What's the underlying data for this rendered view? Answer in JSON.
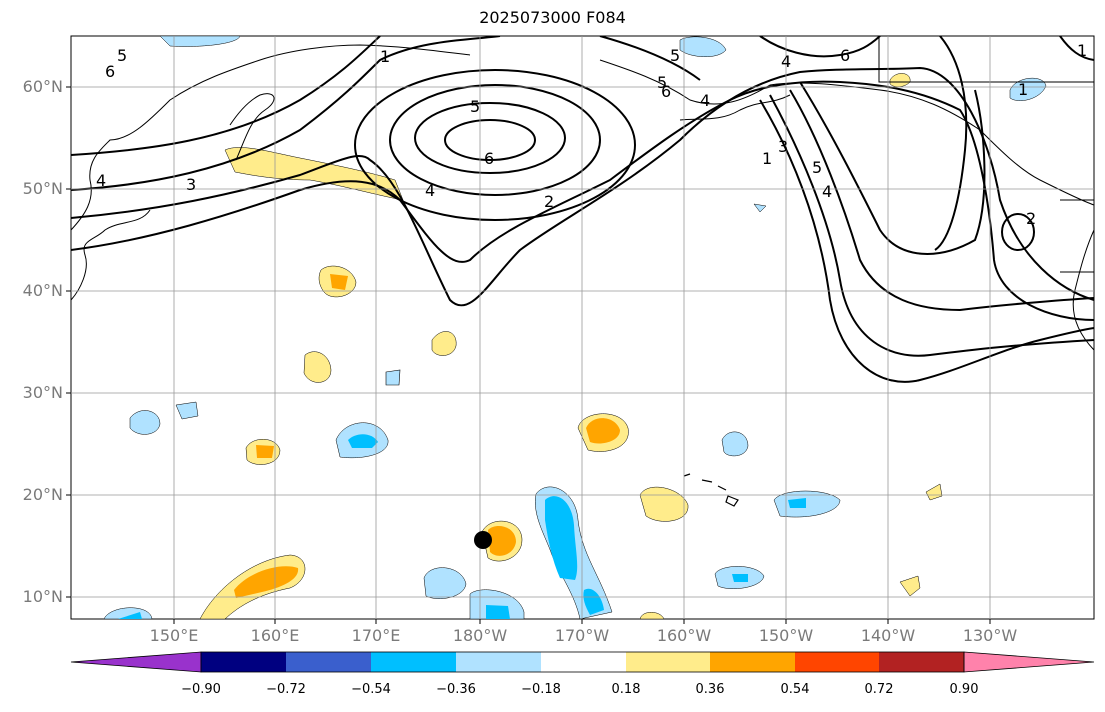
{
  "title": "2025073000 F084",
  "map": {
    "projection": "equirectangular",
    "lon_range": [
      140,
      -120
    ],
    "lat_range": [
      8,
      65
    ],
    "lat_labels": [
      "60°N",
      "50°N",
      "40°N",
      "30°N",
      "20°N",
      "10°N"
    ],
    "lon_labels": [
      "150°E",
      "160°E",
      "170°E",
      "180°W",
      "170°W",
      "160°W",
      "150°W",
      "140°W",
      "130°W"
    ],
    "contour_labels": [
      "5",
      "6",
      "1",
      "5",
      "6",
      "4",
      "3",
      "5",
      "6",
      "4",
      "2",
      "4",
      "6",
      "1",
      "5",
      "4",
      "3",
      "1",
      "4",
      "5",
      "2",
      "1"
    ],
    "marker": "storm-center-dot"
  },
  "colorbar": {
    "ticks": [
      "−0.90",
      "−0.72",
      "−0.54",
      "−0.36",
      "−0.18",
      "0.18",
      "0.36",
      "0.54",
      "0.72",
      "0.90"
    ],
    "colors": [
      "#9932cc",
      "#000080",
      "#3a5fcd",
      "#00bfff",
      "#b0e2ff",
      "#ffffff",
      "#ffec8b",
      "#ffa500",
      "#ff4500",
      "#b22222",
      "#ff82ab"
    ]
  }
}
